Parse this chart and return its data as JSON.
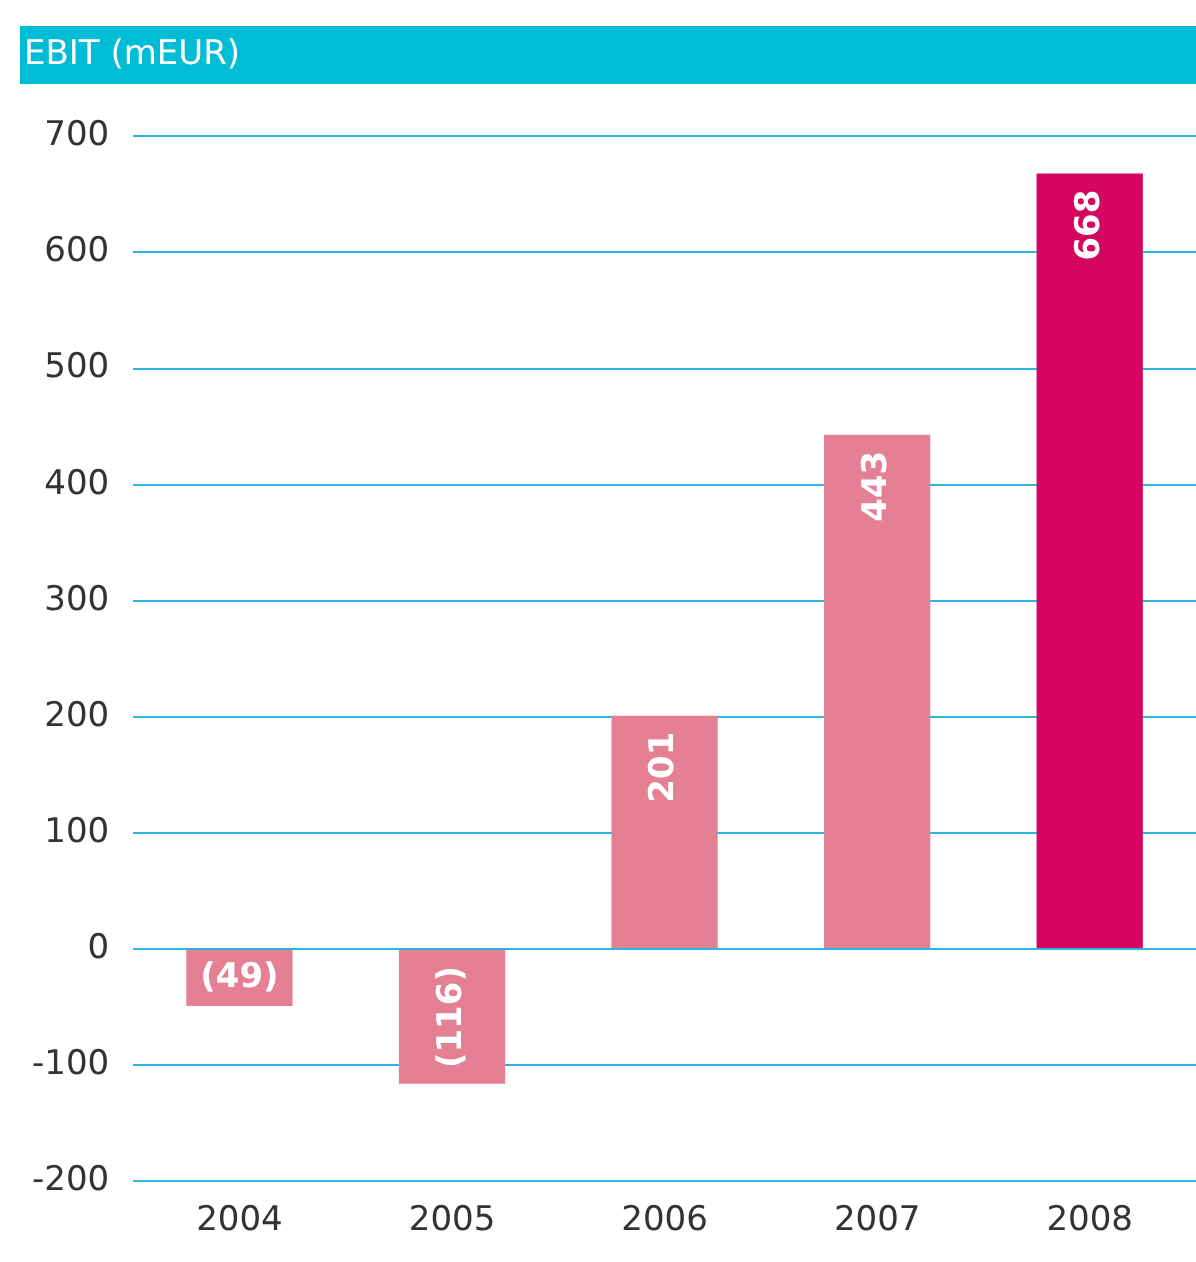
{
  "chart_data": {
    "type": "bar",
    "title": "EBIT (mEUR)",
    "categories": [
      "2004",
      "2005",
      "2006",
      "2007",
      "2008"
    ],
    "values": [
      -49,
      -116,
      201,
      443,
      668
    ],
    "colors": [
      "#e57f93",
      "#e57f93",
      "#e57f93",
      "#e57f93",
      "#d4065f"
    ],
    "value_labels": [
      "(49)",
      "(116)",
      "201",
      "443",
      "668"
    ],
    "ylim": [
      -200,
      700
    ],
    "yticks": [
      -200,
      -100,
      0,
      100,
      200,
      300,
      400,
      500,
      600,
      700
    ],
    "grid": "y",
    "legend": false
  }
}
